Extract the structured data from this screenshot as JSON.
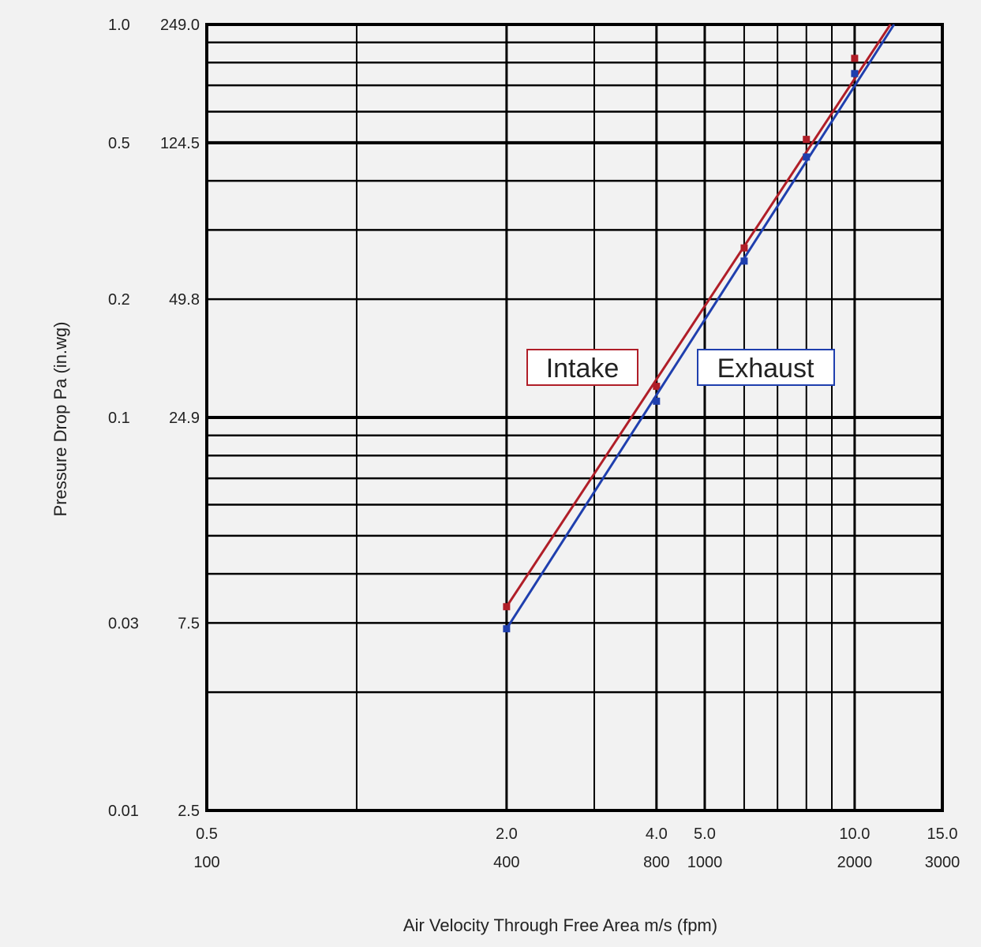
{
  "chart_data": {
    "type": "line",
    "title": "",
    "xlabel": "Air Velocity  Through Free Area  m/s (fpm)",
    "ylabel": "Pressure Drop  Pa (in.wg)",
    "x_scale": "log",
    "y_scale": "log",
    "xlim": [
      0.5,
      15.0
    ],
    "ylim": [
      0.01,
      1.0
    ],
    "x_ticks": [
      {
        "value": 0.5,
        "ms": "0.5",
        "fpm": "100"
      },
      {
        "value": 2.0,
        "ms": "2.0",
        "fpm": "400"
      },
      {
        "value": 4.0,
        "ms": "4.0",
        "fpm": "800"
      },
      {
        "value": 5.0,
        "ms": "5.0",
        "fpm": "1000"
      },
      {
        "value": 10.0,
        "ms": "10.0",
        "fpm": "2000"
      },
      {
        "value": 15.0,
        "ms": "15.0",
        "fpm": "3000"
      }
    ],
    "y_ticks": [
      {
        "value": 1.0,
        "inwg": "1.0",
        "pa": "249.0"
      },
      {
        "value": 0.5,
        "inwg": "0.5",
        "pa": "124.5"
      },
      {
        "value": 0.2,
        "inwg": "0.2",
        "pa": "49.8"
      },
      {
        "value": 0.1,
        "inwg": "0.1",
        "pa": "24.9"
      },
      {
        "value": 0.03,
        "inwg": "0.03",
        "pa": "7.5"
      },
      {
        "value": 0.01,
        "inwg": "0.01",
        "pa": "2.5"
      }
    ],
    "grid": true,
    "series": [
      {
        "name": "Intake",
        "color": "#b01e28",
        "points": [
          [
            2.0,
            0.033
          ],
          [
            4.0,
            0.12
          ],
          [
            6.0,
            0.27
          ],
          [
            8.0,
            0.51
          ],
          [
            10.0,
            0.82
          ]
        ],
        "line": [
          [
            2.0,
            0.033
          ],
          [
            11.8,
            1.0
          ]
        ]
      },
      {
        "name": "Exhaust",
        "color": "#1f3fae",
        "points": [
          [
            2.0,
            0.029
          ],
          [
            4.0,
            0.11
          ],
          [
            6.0,
            0.25
          ],
          [
            8.0,
            0.46
          ],
          [
            10.0,
            0.75
          ]
        ],
        "line": [
          [
            2.0,
            0.029
          ],
          [
            12.0,
            1.0
          ]
        ]
      }
    ]
  }
}
